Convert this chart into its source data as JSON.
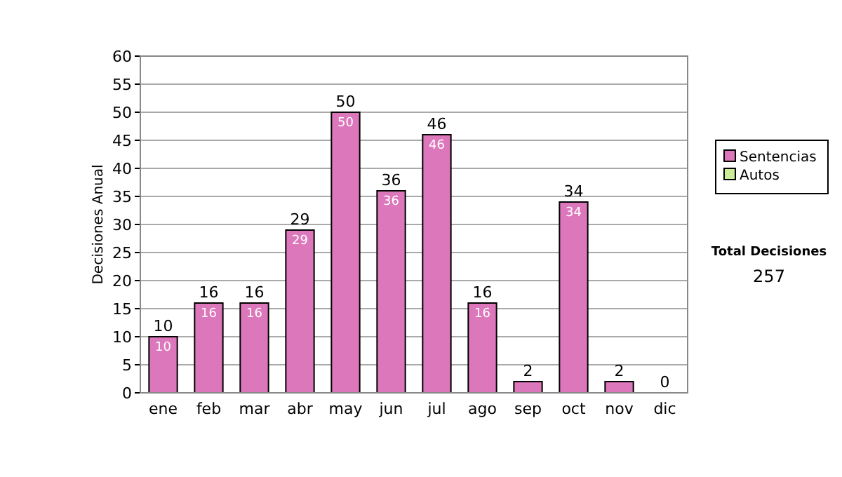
{
  "chart_data": {
    "type": "bar",
    "ylabel": "Decisiones Anual",
    "categories": [
      "ene",
      "feb",
      "mar",
      "abr",
      "may",
      "jun",
      "jul",
      "ago",
      "sep",
      "oct",
      "nov",
      "dic"
    ],
    "stacked": true,
    "series": [
      {
        "name": "Sentencias",
        "color": "#dd77bb",
        "values": [
          10,
          16,
          16,
          29,
          50,
          36,
          46,
          16,
          2,
          34,
          2,
          0
        ],
        "value_labels": [
          "10",
          "16",
          "16",
          "29",
          "50",
          "36",
          "46",
          "16",
          null,
          "34",
          null,
          null
        ]
      },
      {
        "name": "Autos",
        "color": "#ccee99",
        "values": [
          0,
          0,
          0,
          0,
          0,
          0,
          0,
          0,
          0,
          0,
          0,
          0
        ]
      }
    ],
    "totals": [
      "10",
      "16",
      "16",
      "29",
      "50",
      "36",
      "46",
      "16",
      "2",
      "34",
      "2",
      "0"
    ],
    "ylim": [
      0,
      60
    ],
    "yticks": [
      0,
      5,
      10,
      15,
      20,
      25,
      30,
      35,
      40,
      45,
      50,
      55,
      60
    ],
    "grid": "y",
    "legend": "right",
    "annotations": [
      "Total Decisiones",
      "257"
    ]
  }
}
